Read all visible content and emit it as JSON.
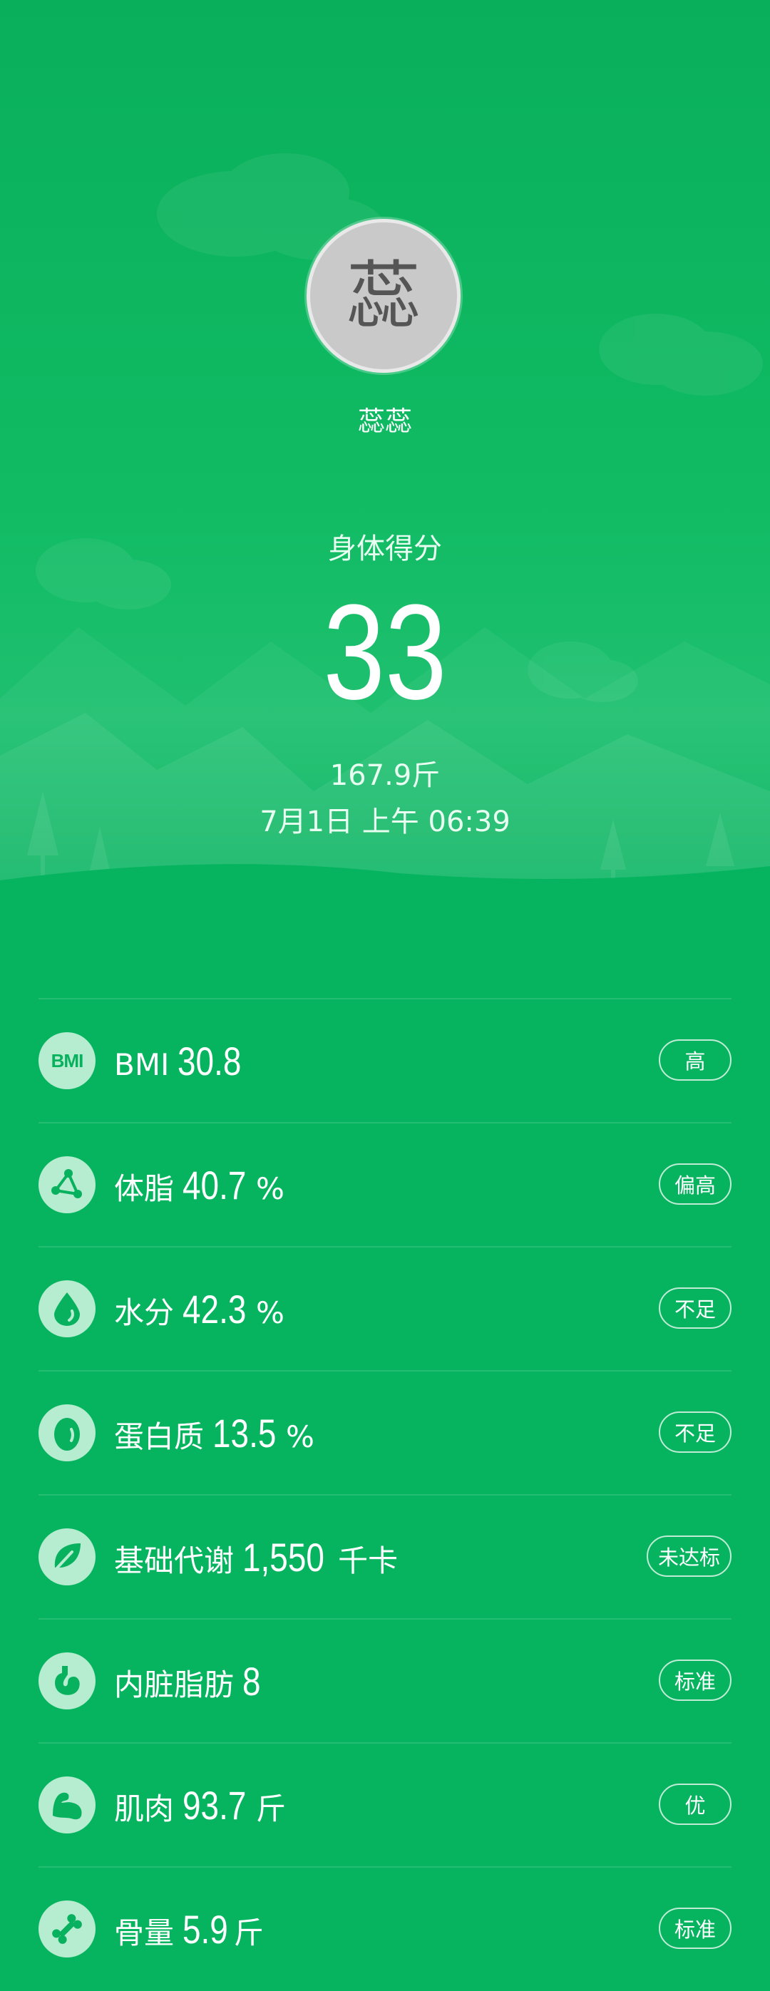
{
  "profile": {
    "avatar_char": "蕊",
    "name": "蕊蕊"
  },
  "score": {
    "label": "身体得分",
    "value": "33",
    "weight": "167.9斤",
    "datetime": "7月1日 上午 06:39"
  },
  "metrics": [
    {
      "icon": "bmi-icon",
      "icon_text": "BMI",
      "label": "BMI",
      "value": "30.8",
      "unit": "",
      "status": "高"
    },
    {
      "icon": "body-fat-icon",
      "label": "体脂",
      "value": "40.7",
      "unit": "%",
      "status": "偏高"
    },
    {
      "icon": "water-drop-icon",
      "label": "水分",
      "value": "42.3",
      "unit": "%",
      "status": "不足"
    },
    {
      "icon": "egg-icon",
      "label": "蛋白质",
      "value": "13.5",
      "unit": "%",
      "status": "不足"
    },
    {
      "icon": "leaf-icon",
      "label": "基础代谢",
      "value": "1,550",
      "unit": "千卡",
      "status": "未达标"
    },
    {
      "icon": "stomach-icon",
      "label": "内脏脂肪",
      "value": "8",
      "unit": "",
      "status": "标准"
    },
    {
      "icon": "muscle-icon",
      "label": "肌肉",
      "value": "93.7",
      "unit": "斤",
      "status": "优"
    },
    {
      "icon": "bone-icon",
      "label": "骨量",
      "value": "5.9",
      "unit": "斤",
      "status": "标准"
    }
  ],
  "colors": {
    "background": "#06b45f",
    "icon_bg": "#b6ecd0",
    "icon_fg": "#07b15d"
  }
}
